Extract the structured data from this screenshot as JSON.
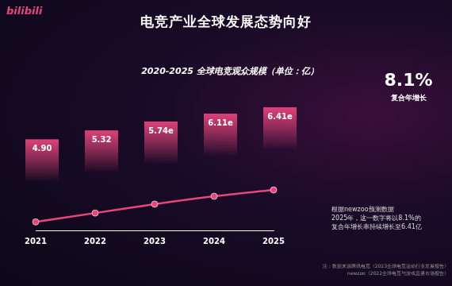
{
  "chart_data": {
    "type": "line",
    "logo": "bilibili",
    "title": "电竞产业全球发展态势向好",
    "subtitle": "2020-2025 全球电竞观众规模（单位：亿）",
    "categories": [
      "2021",
      "2022",
      "2023",
      "2024",
      "2025"
    ],
    "values": [
      4.9,
      5.32,
      5.74,
      6.11,
      6.41
    ],
    "value_labels": [
      "4.90",
      "5.32",
      "5.74e",
      "6.11e",
      "6.41e"
    ],
    "color": "#e8457c",
    "ylim": [
      4.5,
      12
    ],
    "grid": false,
    "data_labels": true,
    "tick_labels": "x",
    "annotations": {
      "cagr": "8.1%",
      "cagr_label": "复合年增长",
      "note": [
        "根据newzoo预测数据",
        "2025年，这一数字将以8.1%的",
        "复合年增长率持续增长至6.41亿"
      ],
      "source": [
        "注：数据来源腾讯电竞《2023全球电竞运动行业发展报告》",
        "newzoo《2022全球电竞与游戏直播市场报告》"
      ]
    }
  }
}
